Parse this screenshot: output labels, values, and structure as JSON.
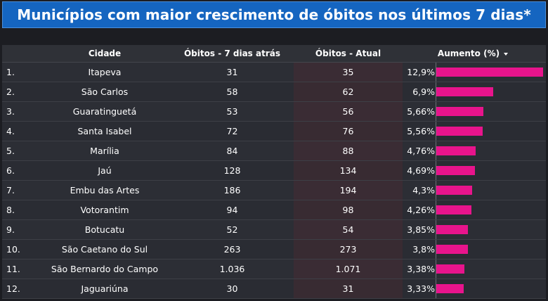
{
  "title": "Municípios com maior crescimento de óbitos nos últimos 7 dias*",
  "columns": {
    "city": "Cidade",
    "old": "Óbitos - 7 dias atrás",
    "current": "Óbitos - Atual",
    "increase": "Aumento (%)"
  },
  "colors": {
    "bar": "#e8148c",
    "title_bg": "#1565c0"
  },
  "chart_data": {
    "type": "table",
    "title": "Municípios com maior crescimento de óbitos nos últimos 7 dias*",
    "headers": [
      "Cidade",
      "Óbitos - 7 dias atrás",
      "Óbitos - Atual",
      "Aumento (%)"
    ],
    "bar_max": 12.9,
    "rows": [
      {
        "index": "1.",
        "city": "Itapeva",
        "old": "31",
        "current": "35",
        "pct_label": "12,9%",
        "pct": 12.9
      },
      {
        "index": "2.",
        "city": "São Carlos",
        "old": "58",
        "current": "62",
        "pct_label": "6,9%",
        "pct": 6.9
      },
      {
        "index": "3.",
        "city": "Guaratinguetá",
        "old": "53",
        "current": "56",
        "pct_label": "5,66%",
        "pct": 5.66
      },
      {
        "index": "4.",
        "city": "Santa Isabel",
        "old": "72",
        "current": "76",
        "pct_label": "5,56%",
        "pct": 5.56
      },
      {
        "index": "5.",
        "city": "Marília",
        "old": "84",
        "current": "88",
        "pct_label": "4,76%",
        "pct": 4.76
      },
      {
        "index": "6.",
        "city": "Jaú",
        "old": "128",
        "current": "134",
        "pct_label": "4,69%",
        "pct": 4.69
      },
      {
        "index": "7.",
        "city": "Embu das Artes",
        "old": "186",
        "current": "194",
        "pct_label": "4,3%",
        "pct": 4.3
      },
      {
        "index": "8.",
        "city": "Votorantim",
        "old": "94",
        "current": "98",
        "pct_label": "4,26%",
        "pct": 4.26
      },
      {
        "index": "9.",
        "city": "Botucatu",
        "old": "52",
        "current": "54",
        "pct_label": "3,85%",
        "pct": 3.85
      },
      {
        "index": "10.",
        "city": "São Caetano do Sul",
        "old": "263",
        "current": "273",
        "pct_label": "3,8%",
        "pct": 3.8
      },
      {
        "index": "11.",
        "city": "São Bernardo do Campo",
        "old": "1.036",
        "current": "1.071",
        "pct_label": "3,38%",
        "pct": 3.38
      },
      {
        "index": "12.",
        "city": "Jaguariúna",
        "old": "30",
        "current": "31",
        "pct_label": "3,33%",
        "pct": 3.33
      }
    ]
  }
}
